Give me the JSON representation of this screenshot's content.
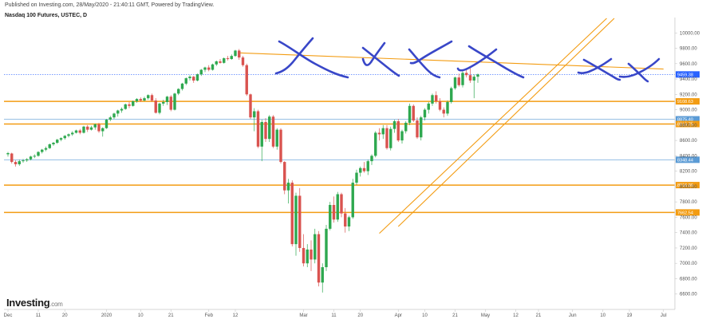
{
  "header": {
    "published": "Published on Investing.com, 28/May/2020 - 21:40:11 GMT, Powered by TradingView.",
    "instrument": "Nasdaq 100 Futures, USTEC, D"
  },
  "logo": {
    "name": "Investing",
    "suffix": ".com"
  },
  "chart_data": {
    "type": "candlestick",
    "ylim": [
      6400,
      10200
    ],
    "y_ticks": [
      6600,
      6800,
      7000,
      7200,
      7400,
      7600,
      7800,
      8000,
      8200,
      8400,
      8600,
      8800,
      9000,
      9200,
      9400,
      9600,
      9800,
      10000
    ],
    "x_tick_labels": [
      "Dec",
      "11",
      "20",
      "2020",
      "10",
      "21",
      "Feb",
      "12",
      "Mar",
      "11",
      "20",
      "Apr",
      "10",
      "21",
      "May",
      "12",
      "21",
      "Jun",
      "10",
      "19",
      "Jul"
    ],
    "x_tick_day_index": [
      0,
      8,
      15,
      26,
      35,
      43,
      53,
      60,
      78,
      86,
      93,
      103,
      110,
      118,
      126,
      134,
      140,
      149,
      157,
      164,
      173
    ],
    "price_levels": [
      {
        "value": 9459.38,
        "label": "9459.38",
        "color": "#2962ff",
        "style": "dotted"
      },
      {
        "value": 9108.63,
        "label": "9108.63",
        "color": "#f39c12",
        "style": "solid"
      },
      {
        "value": 8875.4,
        "label": "8875.40",
        "color": "#5b9bd5",
        "style": "thin"
      },
      {
        "value": 8813.75,
        "label": "8813.75",
        "color": "#f39c12",
        "style": "solid"
      },
      {
        "value": 8348.44,
        "label": "8348.44",
        "color": "#5b9bd5",
        "style": "thin"
      },
      {
        "value": 8018.8,
        "label": "8018.80",
        "color": "#f39c12",
        "style": "solid"
      },
      {
        "value": 7662.54,
        "label": "7662.54",
        "color": "#f39c12",
        "style": "solid"
      }
    ],
    "trendlines": [
      {
        "kind": "resistance",
        "from": [
          61,
          9740
        ],
        "to": [
          173,
          9530
        ]
      },
      {
        "kind": "channel-lower",
        "from": [
          98,
          7390
        ],
        "to": [
          158,
          10190
        ]
      },
      {
        "kind": "channel-upper",
        "from": [
          103,
          7480
        ],
        "to": [
          160,
          10190
        ]
      }
    ],
    "candles": [
      {
        "day": 0,
        "o": 8420,
        "h": 8450,
        "l": 8390,
        "c": 8435
      },
      {
        "day": 1,
        "o": 8430,
        "h": 8440,
        "l": 8300,
        "c": 8320
      },
      {
        "day": 2,
        "o": 8320,
        "h": 8340,
        "l": 8260,
        "c": 8290
      },
      {
        "day": 3,
        "o": 8290,
        "h": 8350,
        "l": 8270,
        "c": 8330
      },
      {
        "day": 4,
        "o": 8330,
        "h": 8360,
        "l": 8310,
        "c": 8340
      },
      {
        "day": 5,
        "o": 8340,
        "h": 8370,
        "l": 8320,
        "c": 8355
      },
      {
        "day": 6,
        "o": 8355,
        "h": 8400,
        "l": 8340,
        "c": 8390
      },
      {
        "day": 7,
        "o": 8390,
        "h": 8420,
        "l": 8370,
        "c": 8400
      },
      {
        "day": 8,
        "o": 8400,
        "h": 8460,
        "l": 8390,
        "c": 8450
      },
      {
        "day": 9,
        "o": 8450,
        "h": 8490,
        "l": 8430,
        "c": 8480
      },
      {
        "day": 10,
        "o": 8480,
        "h": 8520,
        "l": 8460,
        "c": 8500
      },
      {
        "day": 11,
        "o": 8500,
        "h": 8560,
        "l": 8490,
        "c": 8550
      },
      {
        "day": 12,
        "o": 8550,
        "h": 8580,
        "l": 8530,
        "c": 8570
      },
      {
        "day": 13,
        "o": 8570,
        "h": 8620,
        "l": 8555,
        "c": 8610
      },
      {
        "day": 14,
        "o": 8610,
        "h": 8640,
        "l": 8590,
        "c": 8630
      },
      {
        "day": 15,
        "o": 8630,
        "h": 8670,
        "l": 8610,
        "c": 8660
      },
      {
        "day": 16,
        "o": 8660,
        "h": 8690,
        "l": 8640,
        "c": 8680
      },
      {
        "day": 17,
        "o": 8680,
        "h": 8720,
        "l": 8660,
        "c": 8700
      },
      {
        "day": 18,
        "o": 8700,
        "h": 8740,
        "l": 8690,
        "c": 8730
      },
      {
        "day": 19,
        "o": 8730,
        "h": 8750,
        "l": 8680,
        "c": 8700
      },
      {
        "day": 20,
        "o": 8700,
        "h": 8790,
        "l": 8690,
        "c": 8780
      },
      {
        "day": 21,
        "o": 8780,
        "h": 8800,
        "l": 8710,
        "c": 8740
      },
      {
        "day": 22,
        "o": 8740,
        "h": 8790,
        "l": 8730,
        "c": 8770
      },
      {
        "day": 23,
        "o": 8770,
        "h": 8820,
        "l": 8740,
        "c": 8810
      },
      {
        "day": 24,
        "o": 8810,
        "h": 8830,
        "l": 8700,
        "c": 8720
      },
      {
        "day": 25,
        "o": 8720,
        "h": 8770,
        "l": 8650,
        "c": 8760
      },
      {
        "day": 26,
        "o": 8760,
        "h": 8880,
        "l": 8750,
        "c": 8870
      },
      {
        "day": 27,
        "o": 8870,
        "h": 8920,
        "l": 8850,
        "c": 8900
      },
      {
        "day": 28,
        "o": 8900,
        "h": 8960,
        "l": 8880,
        "c": 8950
      },
      {
        "day": 29,
        "o": 8950,
        "h": 9000,
        "l": 8910,
        "c": 8990
      },
      {
        "day": 30,
        "o": 8990,
        "h": 9030,
        "l": 8960,
        "c": 9010
      },
      {
        "day": 31,
        "o": 9010,
        "h": 9080,
        "l": 9000,
        "c": 9070
      },
      {
        "day": 32,
        "o": 9070,
        "h": 9100,
        "l": 9020,
        "c": 9050
      },
      {
        "day": 33,
        "o": 9050,
        "h": 9120,
        "l": 9040,
        "c": 9110
      },
      {
        "day": 34,
        "o": 9110,
        "h": 9150,
        "l": 9090,
        "c": 9140
      },
      {
        "day": 35,
        "o": 9140,
        "h": 9160,
        "l": 9100,
        "c": 9120
      },
      {
        "day": 36,
        "o": 9120,
        "h": 9170,
        "l": 9110,
        "c": 9150
      },
      {
        "day": 37,
        "o": 9150,
        "h": 9200,
        "l": 9130,
        "c": 9190
      },
      {
        "day": 38,
        "o": 9190,
        "h": 9210,
        "l": 9100,
        "c": 9120
      },
      {
        "day": 39,
        "o": 9120,
        "h": 9150,
        "l": 8950,
        "c": 8960
      },
      {
        "day": 40,
        "o": 8960,
        "h": 9090,
        "l": 8940,
        "c": 9080
      },
      {
        "day": 41,
        "o": 9080,
        "h": 9130,
        "l": 9050,
        "c": 9100
      },
      {
        "day": 42,
        "o": 9100,
        "h": 9180,
        "l": 9060,
        "c": 9170
      },
      {
        "day": 43,
        "o": 9170,
        "h": 9190,
        "l": 8980,
        "c": 9000
      },
      {
        "day": 44,
        "o": 9000,
        "h": 9220,
        "l": 8990,
        "c": 9210
      },
      {
        "day": 45,
        "o": 9210,
        "h": 9280,
        "l": 9190,
        "c": 9270
      },
      {
        "day": 46,
        "o": 9270,
        "h": 9350,
        "l": 9250,
        "c": 9340
      },
      {
        "day": 47,
        "o": 9340,
        "h": 9420,
        "l": 9320,
        "c": 9410
      },
      {
        "day": 48,
        "o": 9410,
        "h": 9450,
        "l": 9380,
        "c": 9430
      },
      {
        "day": 49,
        "o": 9430,
        "h": 9440,
        "l": 9350,
        "c": 9380
      },
      {
        "day": 50,
        "o": 9380,
        "h": 9470,
        "l": 9370,
        "c": 9460
      },
      {
        "day": 51,
        "o": 9460,
        "h": 9530,
        "l": 9440,
        "c": 9520
      },
      {
        "day": 52,
        "o": 9520,
        "h": 9560,
        "l": 9490,
        "c": 9550
      },
      {
        "day": 53,
        "o": 9550,
        "h": 9580,
        "l": 9500,
        "c": 9520
      },
      {
        "day": 54,
        "o": 9520,
        "h": 9600,
        "l": 9510,
        "c": 9590
      },
      {
        "day": 55,
        "o": 9590,
        "h": 9640,
        "l": 9570,
        "c": 9630
      },
      {
        "day": 56,
        "o": 9630,
        "h": 9660,
        "l": 9600,
        "c": 9610
      },
      {
        "day": 57,
        "o": 9610,
        "h": 9680,
        "l": 9600,
        "c": 9670
      },
      {
        "day": 58,
        "o": 9670,
        "h": 9700,
        "l": 9640,
        "c": 9660
      },
      {
        "day": 59,
        "o": 9660,
        "h": 9720,
        "l": 9650,
        "c": 9700
      },
      {
        "day": 60,
        "o": 9700,
        "h": 9780,
        "l": 9690,
        "c": 9770
      },
      {
        "day": 61,
        "o": 9770,
        "h": 9790,
        "l": 9650,
        "c": 9680
      },
      {
        "day": 62,
        "o": 9680,
        "h": 9700,
        "l": 9560,
        "c": 9580
      },
      {
        "day": 63,
        "o": 9580,
        "h": 9600,
        "l": 9180,
        "c": 9200
      },
      {
        "day": 64,
        "o": 9200,
        "h": 9210,
        "l": 8880,
        "c": 8900
      },
      {
        "day": 65,
        "o": 8900,
        "h": 9020,
        "l": 8720,
        "c": 8980
      },
      {
        "day": 66,
        "o": 8980,
        "h": 9000,
        "l": 8500,
        "c": 8520
      },
      {
        "day": 67,
        "o": 8520,
        "h": 8870,
        "l": 8330,
        "c": 8840
      },
      {
        "day": 68,
        "o": 8840,
        "h": 8890,
        "l": 8580,
        "c": 8620
      },
      {
        "day": 69,
        "o": 8620,
        "h": 8930,
        "l": 8580,
        "c": 8910
      },
      {
        "day": 70,
        "o": 8910,
        "h": 8930,
        "l": 8500,
        "c": 8520
      },
      {
        "day": 71,
        "o": 8520,
        "h": 8760,
        "l": 8480,
        "c": 8740
      },
      {
        "day": 72,
        "o": 8740,
        "h": 8760,
        "l": 8300,
        "c": 8320
      },
      {
        "day": 73,
        "o": 8320,
        "h": 8330,
        "l": 7900,
        "c": 7950
      },
      {
        "day": 74,
        "o": 7950,
        "h": 8100,
        "l": 7780,
        "c": 8050
      },
      {
        "day": 75,
        "o": 8050,
        "h": 8080,
        "l": 7220,
        "c": 7250
      },
      {
        "day": 76,
        "o": 7250,
        "h": 7920,
        "l": 7100,
        "c": 7880
      },
      {
        "day": 77,
        "o": 7880,
        "h": 7980,
        "l": 7150,
        "c": 7200
      },
      {
        "day": 78,
        "o": 7200,
        "h": 7380,
        "l": 6960,
        "c": 7000
      },
      {
        "day": 79,
        "o": 7000,
        "h": 7250,
        "l": 6950,
        "c": 7180
      },
      {
        "day": 80,
        "o": 7180,
        "h": 7300,
        "l": 6900,
        "c": 7050
      },
      {
        "day": 81,
        "o": 7050,
        "h": 7450,
        "l": 7000,
        "c": 7380
      },
      {
        "day": 82,
        "o": 7380,
        "h": 7420,
        "l": 6700,
        "c": 6750
      },
      {
        "day": 83,
        "o": 6750,
        "h": 7000,
        "l": 6620,
        "c": 6950
      },
      {
        "day": 84,
        "o": 6950,
        "h": 7500,
        "l": 6900,
        "c": 7450
      },
      {
        "day": 85,
        "o": 7450,
        "h": 7800,
        "l": 7430,
        "c": 7760
      },
      {
        "day": 86,
        "o": 7760,
        "h": 7870,
        "l": 7530,
        "c": 7570
      },
      {
        "day": 87,
        "o": 7570,
        "h": 7930,
        "l": 7540,
        "c": 7900
      },
      {
        "day": 88,
        "o": 7900,
        "h": 7920,
        "l": 7600,
        "c": 7650
      },
      {
        "day": 89,
        "o": 7650,
        "h": 7720,
        "l": 7400,
        "c": 7480
      },
      {
        "day": 90,
        "o": 7480,
        "h": 7620,
        "l": 7420,
        "c": 7600
      },
      {
        "day": 91,
        "o": 7600,
        "h": 8100,
        "l": 7580,
        "c": 8050
      },
      {
        "day": 92,
        "o": 8050,
        "h": 8220,
        "l": 8020,
        "c": 8180
      },
      {
        "day": 93,
        "o": 8180,
        "h": 8260,
        "l": 8130,
        "c": 8240
      },
      {
        "day": 94,
        "o": 8240,
        "h": 8320,
        "l": 8180,
        "c": 8200
      },
      {
        "day": 95,
        "o": 8200,
        "h": 8350,
        "l": 8150,
        "c": 8330
      },
      {
        "day": 96,
        "o": 8330,
        "h": 8420,
        "l": 8280,
        "c": 8400
      },
      {
        "day": 97,
        "o": 8400,
        "h": 8720,
        "l": 8380,
        "c": 8700
      },
      {
        "day": 98,
        "o": 8700,
        "h": 8760,
        "l": 8600,
        "c": 8680
      },
      {
        "day": 99,
        "o": 8680,
        "h": 8800,
        "l": 8620,
        "c": 8760
      },
      {
        "day": 100,
        "o": 8760,
        "h": 8800,
        "l": 8480,
        "c": 8500
      },
      {
        "day": 101,
        "o": 8500,
        "h": 8780,
        "l": 8470,
        "c": 8750
      },
      {
        "day": 102,
        "o": 8750,
        "h": 8870,
        "l": 8700,
        "c": 8850
      },
      {
        "day": 103,
        "o": 8850,
        "h": 8880,
        "l": 8580,
        "c": 8600
      },
      {
        "day": 104,
        "o": 8600,
        "h": 8740,
        "l": 8560,
        "c": 8720
      },
      {
        "day": 105,
        "o": 8720,
        "h": 8850,
        "l": 8690,
        "c": 8830
      },
      {
        "day": 106,
        "o": 8830,
        "h": 9080,
        "l": 8800,
        "c": 9050
      },
      {
        "day": 107,
        "o": 9050,
        "h": 9070,
        "l": 8840,
        "c": 8860
      },
      {
        "day": 108,
        "o": 8860,
        "h": 8900,
        "l": 8620,
        "c": 8640
      },
      {
        "day": 109,
        "o": 8640,
        "h": 8920,
        "l": 8600,
        "c": 8900
      },
      {
        "day": 110,
        "o": 8900,
        "h": 9020,
        "l": 8860,
        "c": 9000
      },
      {
        "day": 111,
        "o": 9000,
        "h": 9100,
        "l": 8950,
        "c": 9080
      },
      {
        "day": 112,
        "o": 9080,
        "h": 9210,
        "l": 9050,
        "c": 9190
      },
      {
        "day": 113,
        "o": 9190,
        "h": 9240,
        "l": 9080,
        "c": 9110
      },
      {
        "day": 114,
        "o": 9110,
        "h": 9150,
        "l": 8980,
        "c": 9000
      },
      {
        "day": 115,
        "o": 9000,
        "h": 9030,
        "l": 8900,
        "c": 8950
      },
      {
        "day": 116,
        "o": 8950,
        "h": 9120,
        "l": 8920,
        "c": 9100
      },
      {
        "day": 117,
        "o": 9100,
        "h": 9300,
        "l": 9080,
        "c": 9280
      },
      {
        "day": 118,
        "o": 9280,
        "h": 9430,
        "l": 9260,
        "c": 9420
      },
      {
        "day": 119,
        "o": 9420,
        "h": 9470,
        "l": 9300,
        "c": 9320
      },
      {
        "day": 120,
        "o": 9320,
        "h": 9500,
        "l": 9290,
        "c": 9480
      },
      {
        "day": 121,
        "o": 9480,
        "h": 9520,
        "l": 9420,
        "c": 9450
      },
      {
        "day": 122,
        "o": 9450,
        "h": 9560,
        "l": 9350,
        "c": 9380
      },
      {
        "day": 123,
        "o": 9380,
        "h": 9460,
        "l": 9150,
        "c": 9430
      },
      {
        "day": 124,
        "o": 9430,
        "h": 9470,
        "l": 9350,
        "c": 9459
      }
    ]
  }
}
